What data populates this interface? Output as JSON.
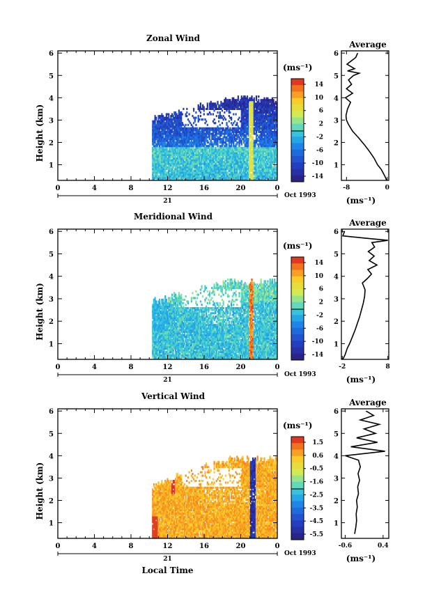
{
  "chart_data": [
    {
      "type": "heatmap",
      "title": "Zonal Wind",
      "ylabel": "Height (km)",
      "x_ticks": [
        "0",
        "4",
        "8",
        "12",
        "16",
        "20",
        "0"
      ],
      "y_ticks": [
        "1",
        "2",
        "3",
        "4",
        "5",
        "6"
      ],
      "xlim": [
        0,
        24
      ],
      "ylim": [
        0.3,
        6.1
      ],
      "x_range_label": "21",
      "date_label": "Oct 1993",
      "colorbar": {
        "unit": "(ms⁻¹)",
        "ticks": [
          "14",
          "10",
          "6",
          "2",
          "-2",
          "-6",
          "-10",
          "-14"
        ],
        "range": [
          -16,
          16
        ]
      },
      "data_extent": {
        "time_start": 10.3,
        "time_end": 24,
        "height_top": [
          3.2,
          4.1
        ],
        "height_bottom": 0.3
      },
      "average_profile": {
        "title": "Average",
        "xlabel": "(ms⁻¹)",
        "x_ticks": [
          "-8",
          "0"
        ],
        "xlim": [
          -9,
          0.3
        ],
        "y_ticks": [
          "1",
          "2",
          "3",
          "4",
          "5",
          "6"
        ],
        "heights": [
          0.3,
          0.5,
          0.8,
          1.0,
          1.3,
          1.6,
          1.9,
          2.2,
          2.5,
          2.8,
          3.0,
          3.2,
          3.5,
          3.8,
          4.0,
          4.2,
          4.4,
          4.6,
          4.8,
          5.0,
          5.1,
          5.2,
          5.3,
          5.5,
          5.8,
          6.0
        ],
        "values": [
          -0.1,
          -0.5,
          -1.2,
          -1.9,
          -2.6,
          -3.5,
          -4.5,
          -5.6,
          -6.8,
          -7.6,
          -8.0,
          -8.1,
          -7.8,
          -7.2,
          -8.2,
          -6.8,
          -8.0,
          -7.0,
          -7.6,
          -6.6,
          -5.5,
          -7.8,
          -6.4,
          -7.9,
          -6.2,
          -5.8
        ]
      }
    },
    {
      "type": "heatmap",
      "title": "Meridional Wind",
      "ylabel": "Height (km)",
      "x_ticks": [
        "0",
        "4",
        "8",
        "12",
        "16",
        "20",
        "0"
      ],
      "y_ticks": [
        "1",
        "2",
        "3",
        "4",
        "5",
        "6"
      ],
      "xlim": [
        0,
        24
      ],
      "ylim": [
        0.3,
        6.1
      ],
      "x_range_label": "21",
      "date_label": "Oct 1993",
      "colorbar": {
        "unit": "(ms⁻¹)",
        "ticks": [
          "14",
          "10",
          "6",
          "2",
          "-2",
          "-6",
          "-10",
          "-14"
        ],
        "range": [
          -16,
          16
        ]
      },
      "data_extent": {
        "time_start": 10.3,
        "time_end": 24,
        "height_top": [
          3.0,
          3.9
        ],
        "height_bottom": 0.3
      },
      "average_profile": {
        "title": "Average",
        "xlabel": "(ms⁻¹)",
        "x_ticks": [
          "-2",
          "8"
        ],
        "xlim": [
          -2.2,
          8.2
        ],
        "y_ticks": [
          "1",
          "2",
          "3",
          "4",
          "5",
          "6"
        ],
        "heights": [
          0.3,
          0.5,
          0.8,
          1.0,
          1.3,
          1.6,
          1.9,
          2.2,
          2.5,
          2.8,
          3.1,
          3.4,
          3.7,
          3.9,
          4.1,
          4.3,
          4.5,
          4.7,
          4.9,
          5.1,
          5.3,
          5.5,
          5.6,
          5.7,
          5.8,
          6.0
        ],
        "values": [
          -1.9,
          -1.4,
          -0.9,
          -0.4,
          0.2,
          0.8,
          1.3,
          1.8,
          2.2,
          2.6,
          2.9,
          3.0,
          2.4,
          3.5,
          4.4,
          3.6,
          5.6,
          3.9,
          5.0,
          3.7,
          5.1,
          4.5,
          8.0,
          3.0,
          -1.9,
          -1.5
        ]
      }
    },
    {
      "type": "heatmap",
      "title": "Vertical Wind",
      "ylabel": "Height (km)",
      "xlabel": "Local Time",
      "x_ticks": [
        "0",
        "4",
        "8",
        "12",
        "16",
        "20",
        "0"
      ],
      "y_ticks": [
        "1",
        "2",
        "3",
        "4",
        "5",
        "6"
      ],
      "xlim": [
        0,
        24
      ],
      "ylim": [
        0.3,
        6.1
      ],
      "x_range_label": "21",
      "date_label": "Oct 1993",
      "colorbar": {
        "unit": "(ms⁻¹)",
        "ticks": [
          "1.5",
          "0.6",
          "-0.5",
          "-1.6",
          "-2.5",
          "-3.5",
          "-4.5",
          "-5.5"
        ],
        "range": [
          -6,
          2
        ]
      },
      "data_extent": {
        "time_start": 10.3,
        "time_end": 24,
        "height_top": [
          2.8,
          4.0
        ],
        "height_bottom": 0.3
      },
      "average_profile": {
        "title": "Average",
        "xlabel": "(ms⁻¹)",
        "x_ticks": [
          "-0.6",
          "0.4"
        ],
        "xlim": [
          -0.7,
          0.55
        ],
        "y_ticks": [
          "1",
          "2",
          "3",
          "4",
          "5",
          "6"
        ],
        "heights": [
          0.5,
          0.8,
          1.1,
          1.4,
          1.7,
          2.0,
          2.3,
          2.6,
          2.9,
          3.2,
          3.5,
          3.8,
          4.0,
          4.2,
          4.4,
          4.6,
          4.8,
          5.0,
          5.2,
          5.4,
          5.6,
          5.8,
          6.0
        ],
        "values": [
          -0.35,
          -0.32,
          -0.3,
          -0.31,
          -0.28,
          -0.3,
          -0.25,
          -0.27,
          -0.22,
          -0.26,
          -0.2,
          -0.25,
          -0.6,
          0.45,
          -0.45,
          0.25,
          -0.3,
          0.2,
          -0.1,
          0.3,
          -0.2,
          0.15,
          -0.05
        ]
      }
    }
  ]
}
